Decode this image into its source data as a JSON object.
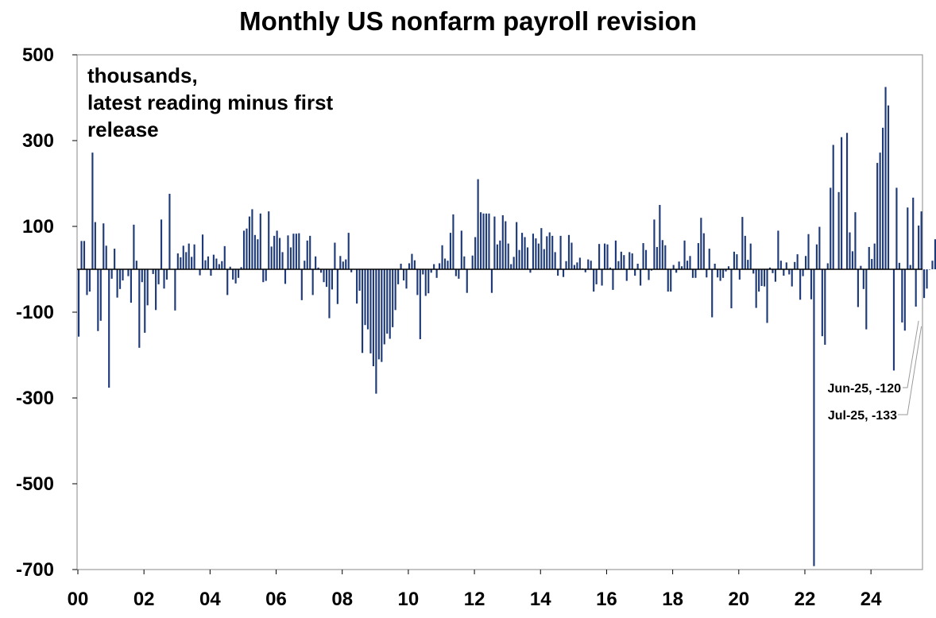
{
  "chart_data": {
    "type": "bar",
    "title": "Monthly US nonfarm payroll revision",
    "note_lines": [
      "thousands,",
      "latest reading minus first",
      "release"
    ],
    "xlabel": "",
    "ylabel": "",
    "unit": "thousands",
    "ylim": [
      -700,
      500
    ],
    "yticks": [
      500,
      300,
      100,
      -100,
      -300,
      -500,
      -700
    ],
    "ytick_labels": [
      "500",
      "300",
      "100",
      "-100",
      "-300",
      "-500",
      "-700"
    ],
    "xticks": [
      "00",
      "02",
      "04",
      "06",
      "08",
      "10",
      "12",
      "14",
      "16",
      "18",
      "20",
      "22",
      "24"
    ],
    "x_start": "2000-01",
    "x_end": "2025-07",
    "grid": false,
    "bar_color": "#1f3a78",
    "series": [
      {
        "values": [
          -157,
          66,
          66,
          -60,
          -52,
          272,
          110,
          -144,
          -120,
          107,
          55,
          -276,
          -22,
          48,
          -66,
          -46,
          -26,
          0,
          -16,
          -78,
          104,
          20,
          -183,
          -30,
          -148,
          -84,
          0,
          -11,
          -95,
          -35,
          116,
          -45,
          -24,
          176,
          0,
          -96,
          37,
          28,
          55,
          40,
          60,
          29,
          58,
          1,
          -14,
          81,
          21,
          30,
          -15,
          34,
          25,
          12,
          19,
          54,
          -60,
          6,
          -24,
          -33,
          -20,
          5,
          90,
          95,
          123,
          140,
          80,
          70,
          130,
          -30,
          -27,
          135,
          53,
          78,
          90,
          73,
          40,
          -34,
          79,
          51,
          83,
          83,
          84,
          -72,
          20,
          67,
          78,
          -60,
          30,
          4,
          -8,
          -30,
          -41,
          -114,
          -47,
          62,
          -81,
          31,
          18,
          23,
          85,
          -7,
          -1,
          -80,
          -50,
          -195,
          -130,
          -140,
          -196,
          -226,
          -290,
          -210,
          -216,
          -175,
          -150,
          -162,
          -135,
          -95,
          -35,
          13,
          -26,
          -45,
          14,
          36,
          21,
          -60,
          -163,
          -12,
          -62,
          -56,
          -8,
          12,
          -20,
          14,
          56,
          25,
          20,
          85,
          128,
          -16,
          -22,
          90,
          30,
          -55,
          1,
          32,
          75,
          210,
          133,
          130,
          130,
          130,
          -55,
          123,
          58,
          67,
          126,
          112,
          60,
          12,
          29,
          110,
          45,
          85,
          75,
          51,
          -8,
          83,
          72,
          60,
          96,
          47,
          77,
          86,
          78,
          40,
          -15,
          78,
          -18,
          19,
          80,
          62,
          10,
          16,
          27,
          2,
          -7,
          23,
          20,
          -52,
          -35,
          59,
          -38,
          60,
          58,
          4,
          -48,
          67,
          19,
          41,
          33,
          -27,
          40,
          37,
          -15,
          13,
          -38,
          61,
          45,
          -25,
          -3,
          116,
          52,
          150,
          68,
          56,
          -52,
          -52,
          10,
          -8,
          18,
          7,
          67,
          20,
          31,
          -20,
          -20,
          61,
          120,
          84,
          -19,
          48,
          -112,
          13,
          -19,
          -27,
          -20,
          -5,
          7,
          -91,
          41,
          35,
          -24,
          122,
          78,
          22,
          60,
          -10,
          -90,
          -52,
          -39,
          -40,
          -125,
          4,
          -9,
          -29,
          90,
          20,
          -15,
          16,
          -12,
          -40,
          17,
          35,
          -71,
          -16,
          31,
          82,
          -70,
          -692,
          58,
          99,
          -156,
          -176,
          14,
          190,
          290,
          0,
          180,
          308,
          0,
          318,
          86,
          42,
          133,
          -88,
          8,
          -46,
          -140,
          52,
          24,
          60,
          248,
          272,
          330,
          425,
          382,
          0,
          -236,
          190,
          15,
          -124,
          -143,
          144,
          10,
          167,
          -87,
          102,
          135,
          -67,
          -45,
          0,
          20,
          70,
          -64,
          -31,
          -95,
          -147,
          -2,
          -10,
          -59,
          -75,
          40,
          123,
          20,
          43,
          -78,
          -62,
          28,
          -58,
          -102,
          13,
          30,
          -50,
          -40,
          40,
          -42,
          -232,
          40,
          43,
          -31,
          -29,
          -23,
          -25,
          -50,
          -64,
          62,
          38,
          -68,
          -30,
          -97,
          22,
          27,
          31,
          70,
          -25,
          -27,
          -46,
          -106,
          -120,
          -133
        ]
      }
    ],
    "annotations": [
      {
        "label": "Jun-25, -120",
        "date": "2025-06",
        "value": -120
      },
      {
        "label": "Jul-25, -133",
        "date": "2025-07",
        "value": -133
      }
    ]
  }
}
